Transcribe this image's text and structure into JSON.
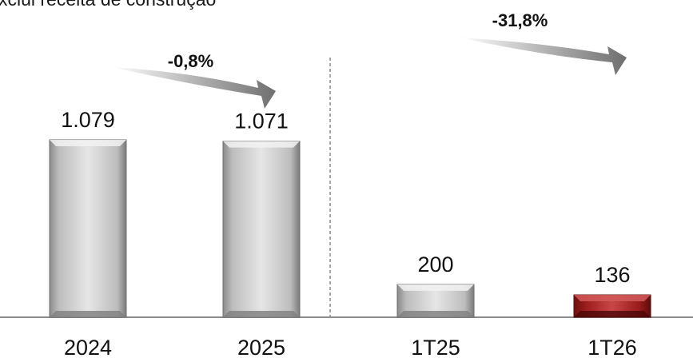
{
  "subtitle": "xclui receita de construção",
  "chart_data": {
    "type": "bar",
    "categories": [
      "2024",
      "2025",
      "1T25",
      "1T26"
    ],
    "values": [
      1079,
      1071,
      200,
      136
    ],
    "value_labels": [
      "1.079",
      "1.071",
      "200",
      "136"
    ],
    "bar_colors": [
      "#c8c8c8",
      "#c8c8c8",
      "#c8c8c8",
      "#a51c1c"
    ],
    "ylim": [
      0,
      1300
    ],
    "grid": false,
    "separator_after_category": 1,
    "annotations": [
      {
        "label": "-0,8%",
        "from": 0,
        "to": 1
      },
      {
        "label": "-31,8%",
        "from": 2,
        "to": 3
      }
    ]
  }
}
